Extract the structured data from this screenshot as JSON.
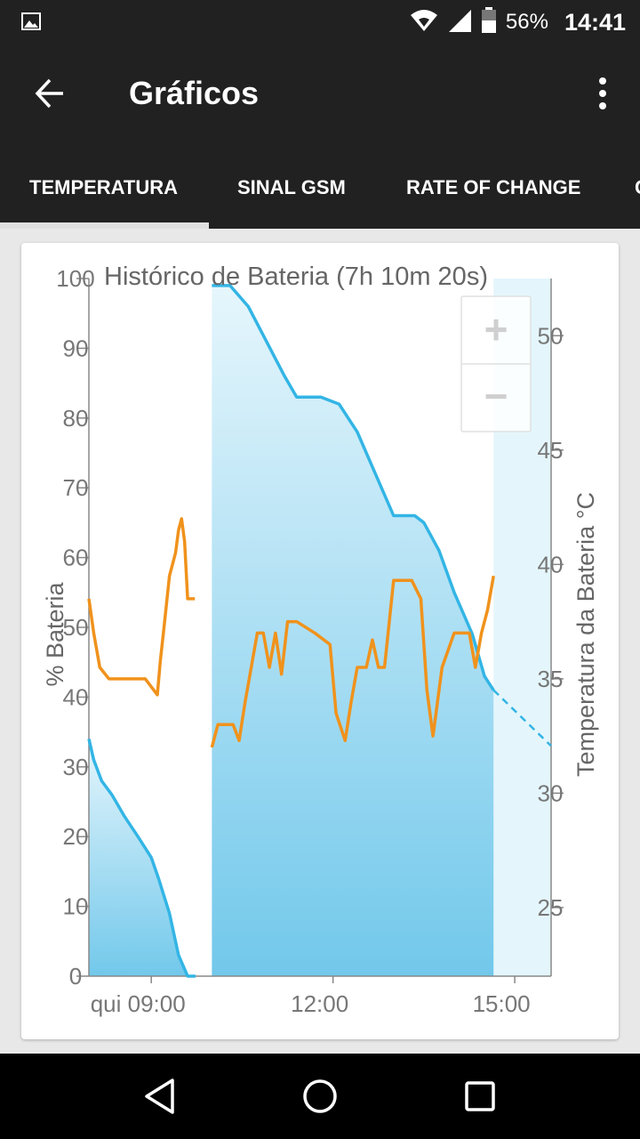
{
  "status_bar": {
    "notification_icon": "image-icon",
    "wifi_icon": "wifi-icon",
    "signal_icon": "signal-icon",
    "battery_icon": "battery-icon",
    "battery_percent": "56%",
    "time": "14:41"
  },
  "app_bar": {
    "title": "Gráficos",
    "back_icon": "arrow-back-icon",
    "overflow_icon": "more-vert-icon"
  },
  "tabs": [
    {
      "label": "TEMPERATURA",
      "selected": true
    },
    {
      "label": "SINAL GSM",
      "selected": false
    },
    {
      "label": "RATE OF CHANGE",
      "selected": false
    },
    {
      "label": "C",
      "selected": false
    }
  ],
  "zoom": {
    "in_label": "+",
    "out_label": "−"
  },
  "nav_bar": {
    "back_icon": "triangle-back-icon",
    "home_icon": "circle-home-icon",
    "recents_icon": "square-recents-icon"
  },
  "chart_data": {
    "type": "line",
    "title": "Histórico de Bateria (7h 10m 20s)",
    "xlabel": "",
    "ylabel": "% Bateria",
    "y2label": "Temperatura da Bateria °C",
    "x_tick_labels": [
      "qui 09:00",
      "12:00",
      "15:00"
    ],
    "x_ticks": [
      9,
      12,
      15
    ],
    "xlim": [
      7.97,
      15.6
    ],
    "ylim": [
      0,
      100
    ],
    "y_ticks": [
      0,
      10,
      20,
      30,
      40,
      50,
      60,
      70,
      80,
      90,
      100
    ],
    "y2lim": [
      22,
      52.5
    ],
    "y2_ticks": [
      25,
      30,
      35,
      40,
      45,
      50
    ],
    "grid": false,
    "colors": {
      "battery": "#33b5e5",
      "fill": "#cdeef9",
      "temperature": "#f0921c",
      "axis": "#888888"
    },
    "series": [
      {
        "name": "% Bateria",
        "axis": "left",
        "segments": [
          {
            "x": [
              7.97,
              8.05,
              8.18,
              8.35,
              8.55,
              8.78,
              9.0,
              9.12,
              9.3,
              9.45,
              9.6,
              9.73
            ],
            "y": [
              34,
              31,
              28,
              26,
              23,
              20,
              17,
              14,
              9,
              3,
              0,
              0
            ]
          },
          {
            "x": [
              10.0,
              10.3,
              10.6,
              10.9,
              11.2,
              11.4,
              11.8,
              12.1,
              12.4,
              12.7,
              13.0,
              13.35,
              13.5,
              13.75,
              14.0,
              14.3,
              14.5,
              14.65
            ],
            "y": [
              99,
              99,
              96,
              91,
              86,
              83,
              83,
              82,
              78,
              72,
              66,
              66,
              65,
              61,
              55,
              49,
              43,
              41
            ]
          }
        ],
        "projection": {
          "x": [
            14.65,
            15.6
          ],
          "y": [
            41,
            33
          ]
        }
      },
      {
        "name": "Temperatura da Bateria °C",
        "axis": "right",
        "segments": [
          {
            "x": [
              7.97,
              8.05,
              8.15,
              8.3,
              8.5,
              8.9,
              9.1,
              9.15,
              9.2,
              9.3,
              9.4,
              9.45,
              9.5,
              9.55,
              9.6,
              9.65,
              9.72
            ],
            "y": [
              38.5,
              37,
              35.5,
              35,
              35,
              35,
              34.3,
              35.8,
              37,
              39.5,
              40.5,
              41.5,
              42,
              41,
              38.5,
              38.5,
              38.5
            ]
          },
          {
            "x": [
              10.0,
              10.1,
              10.35,
              10.45,
              10.55,
              10.75,
              10.85,
              10.95,
              11.05,
              11.15,
              11.25,
              11.4,
              11.7,
              11.95,
              12.05,
              12.2,
              12.3,
              12.4,
              12.55,
              12.65,
              12.75,
              12.85,
              13.0,
              13.1,
              13.3,
              13.45,
              13.55,
              13.65,
              13.8,
              14.0,
              14.25,
              14.35,
              14.45,
              14.55,
              14.65
            ],
            "y": [
              32,
              33,
              33,
              32.3,
              34,
              37,
              37,
              35.5,
              37,
              35.2,
              37.5,
              37.5,
              37,
              36.5,
              33.5,
              32.3,
              34,
              35.5,
              35.5,
              36.7,
              35.5,
              35.5,
              39.3,
              39.3,
              39.3,
              38.5,
              34.5,
              32.5,
              35.5,
              37,
              37,
              35.5,
              37,
              38,
              39.5
            ]
          }
        ]
      }
    ]
  }
}
